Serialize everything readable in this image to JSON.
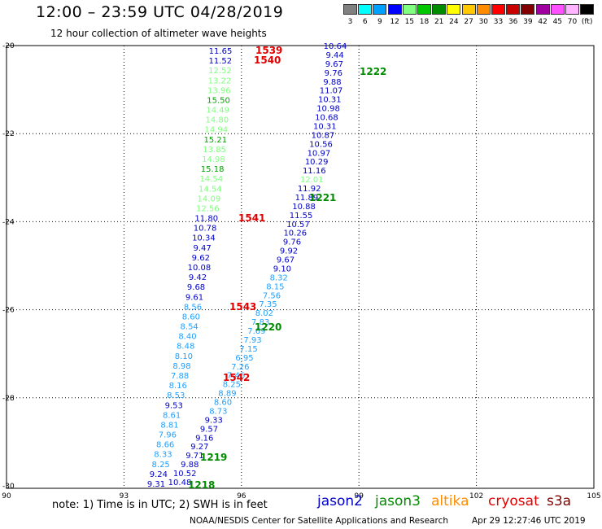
{
  "header": {
    "title": "12:00 – 23:59 UTC 04/28/2019",
    "subtitle": "12 hour collection of altimeter wave heights"
  },
  "color_scale": {
    "bins": [
      {
        "label": "3",
        "color": "#808080"
      },
      {
        "label": "6",
        "color": "#00ffff"
      },
      {
        "label": "9",
        "color": "#00a0ff"
      },
      {
        "label": "12",
        "color": "#0000ff"
      },
      {
        "label": "15",
        "color": "#80ff80"
      },
      {
        "label": "18",
        "color": "#00c800"
      },
      {
        "label": "21",
        "color": "#008c00"
      },
      {
        "label": "24",
        "color": "#ffff00"
      },
      {
        "label": "27",
        "color": "#ffc800"
      },
      {
        "label": "30",
        "color": "#ff8c00"
      },
      {
        "label": "33",
        "color": "#ff0000"
      },
      {
        "label": "36",
        "color": "#c80000"
      },
      {
        "label": "39",
        "color": "#820000"
      },
      {
        "label": "42",
        "color": "#a000a0"
      },
      {
        "label": "45",
        "color": "#ff50ff"
      },
      {
        "label": "70",
        "color": "#ffb4ff"
      },
      {
        "label": "(ft)",
        "color": "#000000"
      }
    ]
  },
  "axes": {
    "lon_ticks": [
      "90",
      "93",
      "96",
      "99",
      "102",
      "105"
    ],
    "lat_ticks": [
      "-20",
      "-22",
      "-24",
      "-26",
      "-28",
      "-30"
    ]
  },
  "tracks": {
    "track_a": [
      {
        "t": "11.65",
        "c": "#0000c8"
      },
      {
        "t": "11.52",
        "c": "#0000c8"
      },
      {
        "t": "12.52",
        "c": "#80ff80"
      },
      {
        "t": "13.22",
        "c": "#80ff80"
      },
      {
        "t": "13.96",
        "c": "#80ff80"
      },
      {
        "t": "15.50",
        "c": "#00a000"
      },
      {
        "t": "14.49",
        "c": "#80ff80"
      },
      {
        "t": "14.80",
        "c": "#80ff80"
      },
      {
        "t": "14.94",
        "c": "#80ff80"
      },
      {
        "t": "15.21",
        "c": "#00a000"
      },
      {
        "t": "13.85",
        "c": "#80ff80"
      },
      {
        "t": "14.98",
        "c": "#80ff80"
      },
      {
        "t": "15.18",
        "c": "#00a000"
      },
      {
        "t": "14.54",
        "c": "#80ff80"
      },
      {
        "t": "14.54",
        "c": "#80ff80"
      },
      {
        "t": "14.09",
        "c": "#80ff80"
      },
      {
        "t": "12.56",
        "c": "#80ff80"
      },
      {
        "t": "11.80",
        "c": "#0000c8"
      },
      {
        "t": "10.78",
        "c": "#0000c8"
      },
      {
        "t": "10.34",
        "c": "#0000c8"
      },
      {
        "t": "9.47",
        "c": "#0000c8"
      },
      {
        "t": "9.62",
        "c": "#0000c8"
      },
      {
        "t": "10.08",
        "c": "#0000c8"
      },
      {
        "t": "9.42",
        "c": "#0000c8"
      },
      {
        "t": "9.68",
        "c": "#0000c8"
      },
      {
        "t": "9.61",
        "c": "#0000c8"
      },
      {
        "t": "8.56",
        "c": "#1ea0ff"
      },
      {
        "t": "8.60",
        "c": "#1ea0ff"
      },
      {
        "t": "8.54",
        "c": "#1ea0ff"
      },
      {
        "t": "8.40",
        "c": "#1ea0ff"
      },
      {
        "t": "8.48",
        "c": "#1ea0ff"
      },
      {
        "t": "8.10",
        "c": "#1ea0ff"
      },
      {
        "t": "8.98",
        "c": "#1ea0ff"
      },
      {
        "t": "7.88",
        "c": "#1ea0ff"
      },
      {
        "t": "8.16",
        "c": "#1ea0ff"
      },
      {
        "t": "8.53",
        "c": "#1ea0ff"
      },
      {
        "t": "9.53",
        "c": "#0000c8"
      },
      {
        "t": "8.61",
        "c": "#1ea0ff"
      },
      {
        "t": "8.81",
        "c": "#1ea0ff"
      },
      {
        "t": "7.96",
        "c": "#1ea0ff"
      },
      {
        "t": "8.66",
        "c": "#1ea0ff"
      },
      {
        "t": "8.33",
        "c": "#1ea0ff"
      },
      {
        "t": "8.25",
        "c": "#1ea0ff"
      },
      {
        "t": "9.24",
        "c": "#0000c8"
      },
      {
        "t": "9.31",
        "c": "#0000c8"
      }
    ],
    "track_b": [
      {
        "t": "10.64",
        "c": "#0000c8"
      },
      {
        "t": "9.44",
        "c": "#0000c8"
      },
      {
        "t": "9.67",
        "c": "#0000c8"
      },
      {
        "t": "9.76",
        "c": "#0000c8"
      },
      {
        "t": "9.88",
        "c": "#0000c8"
      },
      {
        "t": "11.07",
        "c": "#0000c8"
      },
      {
        "t": "10.31",
        "c": "#0000c8"
      },
      {
        "t": "10.98",
        "c": "#0000c8"
      },
      {
        "t": "10.68",
        "c": "#0000c8"
      },
      {
        "t": "10.31",
        "c": "#0000c8"
      },
      {
        "t": "10.87",
        "c": "#0000c8"
      },
      {
        "t": "10.56",
        "c": "#0000c8"
      },
      {
        "t": "10.97",
        "c": "#0000c8"
      },
      {
        "t": "10.29",
        "c": "#0000c8"
      },
      {
        "t": "11.16",
        "c": "#0000c8"
      },
      {
        "t": "12.01",
        "c": "#80ff80"
      },
      {
        "t": "11.92",
        "c": "#0000c8"
      },
      {
        "t": "11.89",
        "c": "#0000c8"
      },
      {
        "t": "10.88",
        "c": "#0000c8"
      },
      {
        "t": "11.55",
        "c": "#0000c8"
      },
      {
        "t": "10.57",
        "c": "#0000c8"
      },
      {
        "t": "10.26",
        "c": "#0000c8"
      },
      {
        "t": "9.76",
        "c": "#0000c8"
      },
      {
        "t": "9.92",
        "c": "#0000c8"
      },
      {
        "t": "9.67",
        "c": "#0000c8"
      },
      {
        "t": "9.10",
        "c": "#0000c8"
      },
      {
        "t": "8.32",
        "c": "#1ea0ff"
      },
      {
        "t": "8.15",
        "c": "#1ea0ff"
      },
      {
        "t": "7.56",
        "c": "#1ea0ff"
      },
      {
        "t": "7.35",
        "c": "#1ea0ff"
      },
      {
        "t": "8.02",
        "c": "#1ea0ff"
      },
      {
        "t": "7.83",
        "c": "#1ea0ff"
      },
      {
        "t": "7.69",
        "c": "#1ea0ff"
      },
      {
        "t": "7.93",
        "c": "#1ea0ff"
      },
      {
        "t": "7.15",
        "c": "#1ea0ff"
      },
      {
        "t": "6.95",
        "c": "#1ea0ff"
      },
      {
        "t": "7.26",
        "c": "#1ea0ff"
      },
      {
        "t": "7.46",
        "c": "#1ea0ff"
      },
      {
        "t": "8.25",
        "c": "#1ea0ff"
      },
      {
        "t": "8.89",
        "c": "#1ea0ff"
      },
      {
        "t": "8.60",
        "c": "#1ea0ff"
      },
      {
        "t": "8.73",
        "c": "#1ea0ff"
      },
      {
        "t": "9.33",
        "c": "#0000c8"
      },
      {
        "t": "9.57",
        "c": "#0000c8"
      },
      {
        "t": "9.16",
        "c": "#0000c8"
      },
      {
        "t": "9.27",
        "c": "#0000c8"
      },
      {
        "t": "9.71",
        "c": "#0000c8"
      },
      {
        "t": "9.88",
        "c": "#0000c8"
      },
      {
        "t": "10.52",
        "c": "#0000c8"
      },
      {
        "t": "10.48",
        "c": "#0000c8"
      }
    ]
  },
  "time_labels": [
    {
      "t": "1539",
      "c": "#e00000"
    },
    {
      "t": "1540",
      "c": "#e00000"
    },
    {
      "t": "1541",
      "c": "#e00000"
    },
    {
      "t": "1543",
      "c": "#e00000"
    },
    {
      "t": "1542",
      "c": "#e00000"
    },
    {
      "t": "1222",
      "c": "#008c00"
    },
    {
      "t": "1221",
      "c": "#008c00"
    },
    {
      "t": "1220",
      "c": "#008c00"
    },
    {
      "t": "1219",
      "c": "#008c00"
    },
    {
      "t": "1218",
      "c": "#008c00"
    }
  ],
  "footer": {
    "note": "note: 1) Time is in UTC; 2) SWH is in feet",
    "satellites": [
      {
        "name": "jason2",
        "color": "#0000c8"
      },
      {
        "name": "jason3",
        "color": "#008c00"
      },
      {
        "name": "altika",
        "color": "#ff8c00"
      },
      {
        "name": "cryosat",
        "color": "#e00000"
      },
      {
        "name": "s3a",
        "color": "#800000"
      }
    ],
    "credit": "NOAA/NESDIS Center for Satellite Applications and Research",
    "timestamp": "Apr 29 12:27:46 UTC 2019"
  }
}
